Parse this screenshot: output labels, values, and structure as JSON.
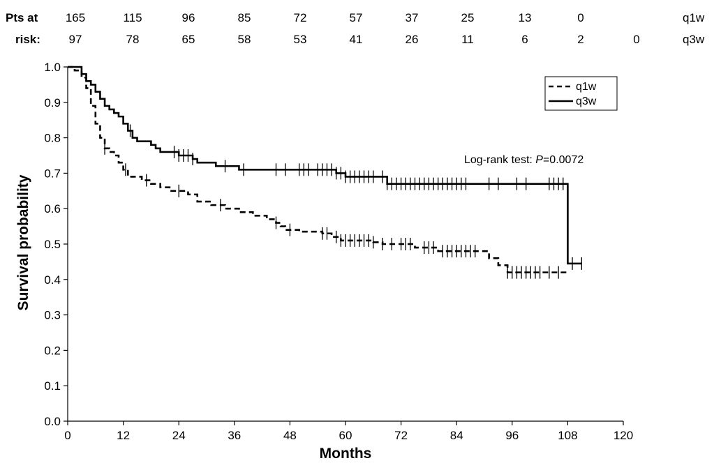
{
  "chart_data": {
    "type": "line",
    "subtype": "kaplan-meier",
    "xlabel": "Months",
    "ylabel": "Survival probability",
    "xlim": [
      0,
      120
    ],
    "ylim": [
      0,
      1.0
    ],
    "xticks": [
      "0",
      "12",
      "24",
      "36",
      "48",
      "60",
      "72",
      "84",
      "96",
      "108",
      "120"
    ],
    "yticks": [
      "0.0",
      "0.1",
      "0.2",
      "0.3",
      "0.4",
      "0.5",
      "0.6",
      "0.7",
      "0.8",
      "0.9",
      "1.0"
    ],
    "grid": false,
    "legend_position": "top-right",
    "annotation": {
      "prefix": "Log-rank test: ",
      "italic": "P",
      "suffix": "=0.0072"
    },
    "risk_table": {
      "header_line1": "Pts at",
      "header_line2": "risk:",
      "rows": [
        {
          "name": "q1w",
          "values": [
            "165",
            "115",
            "96",
            "85",
            "72",
            "57",
            "37",
            "25",
            "13",
            "0"
          ]
        },
        {
          "name": "q3w",
          "values": [
            "97",
            "78",
            "65",
            "58",
            "53",
            "41",
            "26",
            "11",
            "6",
            "2",
            "0"
          ]
        }
      ]
    },
    "series": [
      {
        "name": "q1w",
        "style": "dashed",
        "steps": [
          [
            0,
            1.0
          ],
          [
            1.5,
            0.99
          ],
          [
            3,
            0.97
          ],
          [
            4,
            0.94
          ],
          [
            5,
            0.89
          ],
          [
            6,
            0.84
          ],
          [
            7,
            0.8
          ],
          [
            8,
            0.77
          ],
          [
            9,
            0.76
          ],
          [
            10,
            0.75
          ],
          [
            11,
            0.73
          ],
          [
            12,
            0.71
          ],
          [
            13,
            0.69
          ],
          [
            16,
            0.68
          ],
          [
            18,
            0.67
          ],
          [
            20,
            0.66
          ],
          [
            22,
            0.65
          ],
          [
            26,
            0.64
          ],
          [
            28,
            0.62
          ],
          [
            31,
            0.61
          ],
          [
            34,
            0.6
          ],
          [
            37,
            0.59
          ],
          [
            40,
            0.58
          ],
          [
            43,
            0.57
          ],
          [
            45,
            0.56
          ],
          [
            46,
            0.55
          ],
          [
            47,
            0.54
          ],
          [
            50,
            0.535
          ],
          [
            55,
            0.53
          ],
          [
            57,
            0.52
          ],
          [
            59,
            0.51
          ],
          [
            66,
            0.505
          ],
          [
            68,
            0.5
          ],
          [
            75,
            0.49
          ],
          [
            80,
            0.48
          ],
          [
            91,
            0.46
          ],
          [
            93,
            0.44
          ],
          [
            95,
            0.42
          ],
          [
            108,
            0.42
          ]
        ],
        "censor": [
          8,
          12.5,
          17,
          24,
          33,
          45,
          48,
          55,
          56,
          58,
          59,
          60,
          61,
          62,
          63,
          64,
          65,
          66,
          68,
          70,
          72,
          73,
          74,
          77,
          78,
          79,
          81,
          82,
          83,
          84,
          85,
          86,
          87,
          88,
          95,
          96,
          97,
          98,
          99,
          100,
          101,
          102,
          104,
          106
        ]
      },
      {
        "name": "q3w",
        "style": "solid",
        "steps": [
          [
            0,
            1.0
          ],
          [
            3,
            0.98
          ],
          [
            4,
            0.96
          ],
          [
            5,
            0.95
          ],
          [
            6,
            0.93
          ],
          [
            7,
            0.91
          ],
          [
            8,
            0.89
          ],
          [
            9,
            0.88
          ],
          [
            10,
            0.87
          ],
          [
            11,
            0.86
          ],
          [
            12,
            0.84
          ],
          [
            13,
            0.82
          ],
          [
            14,
            0.8
          ],
          [
            15,
            0.79
          ],
          [
            18,
            0.78
          ],
          [
            19,
            0.77
          ],
          [
            20,
            0.76
          ],
          [
            24,
            0.75
          ],
          [
            27,
            0.74
          ],
          [
            28,
            0.73
          ],
          [
            32,
            0.72
          ],
          [
            37,
            0.71
          ],
          [
            58,
            0.7
          ],
          [
            60,
            0.69
          ],
          [
            69,
            0.67
          ],
          [
            108,
            0.67
          ],
          [
            108,
            0.445
          ],
          [
            111,
            0.445
          ]
        ],
        "censor": [
          13.5,
          23,
          24,
          25,
          26,
          27,
          34,
          38,
          45,
          47,
          50,
          51,
          52,
          54,
          55,
          56,
          57,
          58,
          59,
          60,
          61,
          62,
          63,
          64,
          65,
          66,
          68,
          69,
          70,
          71,
          72,
          73,
          74,
          75,
          76,
          77,
          78,
          79,
          80,
          81,
          82,
          83,
          84,
          85,
          86,
          91,
          93,
          97,
          99,
          104,
          105,
          106,
          107,
          109,
          111
        ]
      }
    ]
  }
}
